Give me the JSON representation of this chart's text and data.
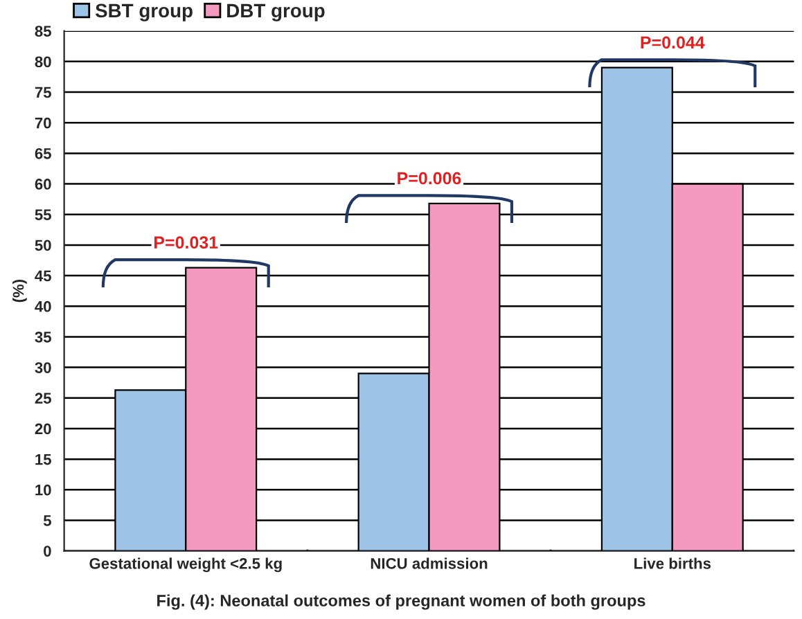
{
  "chart_data": {
    "type": "bar",
    "categories": [
      "Gestational weight <2.5 kg",
      "NICU admission",
      "Live births"
    ],
    "series": [
      {
        "name": "SBT group",
        "color": "#9dc3e6",
        "values": [
          26.3,
          29,
          79
        ]
      },
      {
        "name": "DBT group",
        "color": "#f49ac1",
        "values": [
          46.3,
          56.8,
          60
        ]
      }
    ],
    "ylabel": "(%)",
    "ylim": [
      0,
      85
    ],
    "yticks": [
      0,
      5,
      10,
      15,
      20,
      25,
      30,
      35,
      40,
      45,
      50,
      55,
      60,
      65,
      70,
      75,
      80,
      85
    ],
    "grid": "y",
    "legend": "top left",
    "annotations": [
      "P=0.031",
      "P=0.006",
      "P=0.044",
      "Fig. (4): Neonatal outcomes of pregnant women of both groups"
    ]
  }
}
